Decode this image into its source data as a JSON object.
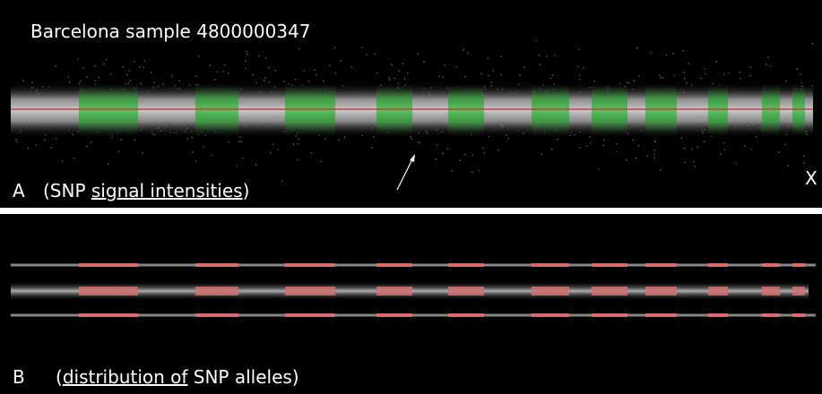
{
  "panel_a": {
    "title": "Barcelona sample 4800000347",
    "label": "A",
    "caption_parts": [
      "(SNP ",
      "signal intensities",
      ")"
    ],
    "chromosome_label": "X"
  },
  "panel_b": {
    "label": "B",
    "caption_parts": [
      "(",
      "distribution of",
      " SNP alleles)"
    ]
  }
}
